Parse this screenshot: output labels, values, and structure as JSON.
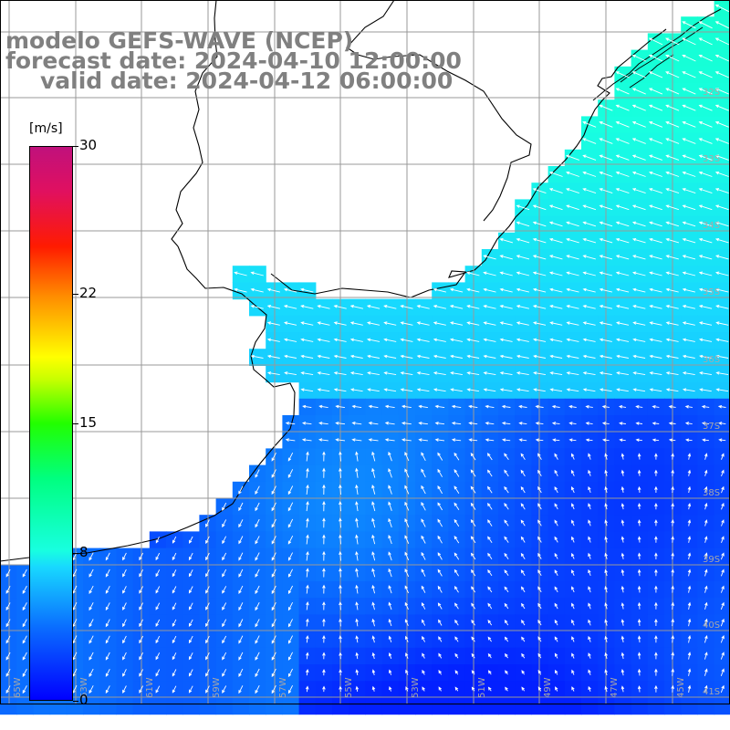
{
  "title": {
    "model": "modelo GEFS-WAVE (NCEP)",
    "forecast": "forecast date: 2024-04-10 12:00:00",
    "valid": "valid date: 2024-04-12 06:00:00"
  },
  "colorbar": {
    "units": "[m/s]",
    "ticks": [
      "30",
      "22",
      "15",
      "8",
      "0"
    ],
    "tick_values": [
      30,
      22,
      15,
      8,
      0
    ],
    "min": 0,
    "max": 30
  },
  "lat_labels": [
    "32S",
    "33S",
    "34S",
    "35S",
    "36S",
    "37S",
    "38S",
    "39S",
    "40S",
    "41S"
  ],
  "lon_labels": [
    "65W",
    "63W",
    "61W",
    "59W",
    "57W",
    "55W",
    "53W",
    "51W",
    "49W",
    "47W",
    "45W"
  ],
  "colors": {
    "land": "#ffffff",
    "coast": "#000000",
    "grid": "#a0a0a0",
    "arrows": "#ffffff",
    "title": "#808080"
  }
}
